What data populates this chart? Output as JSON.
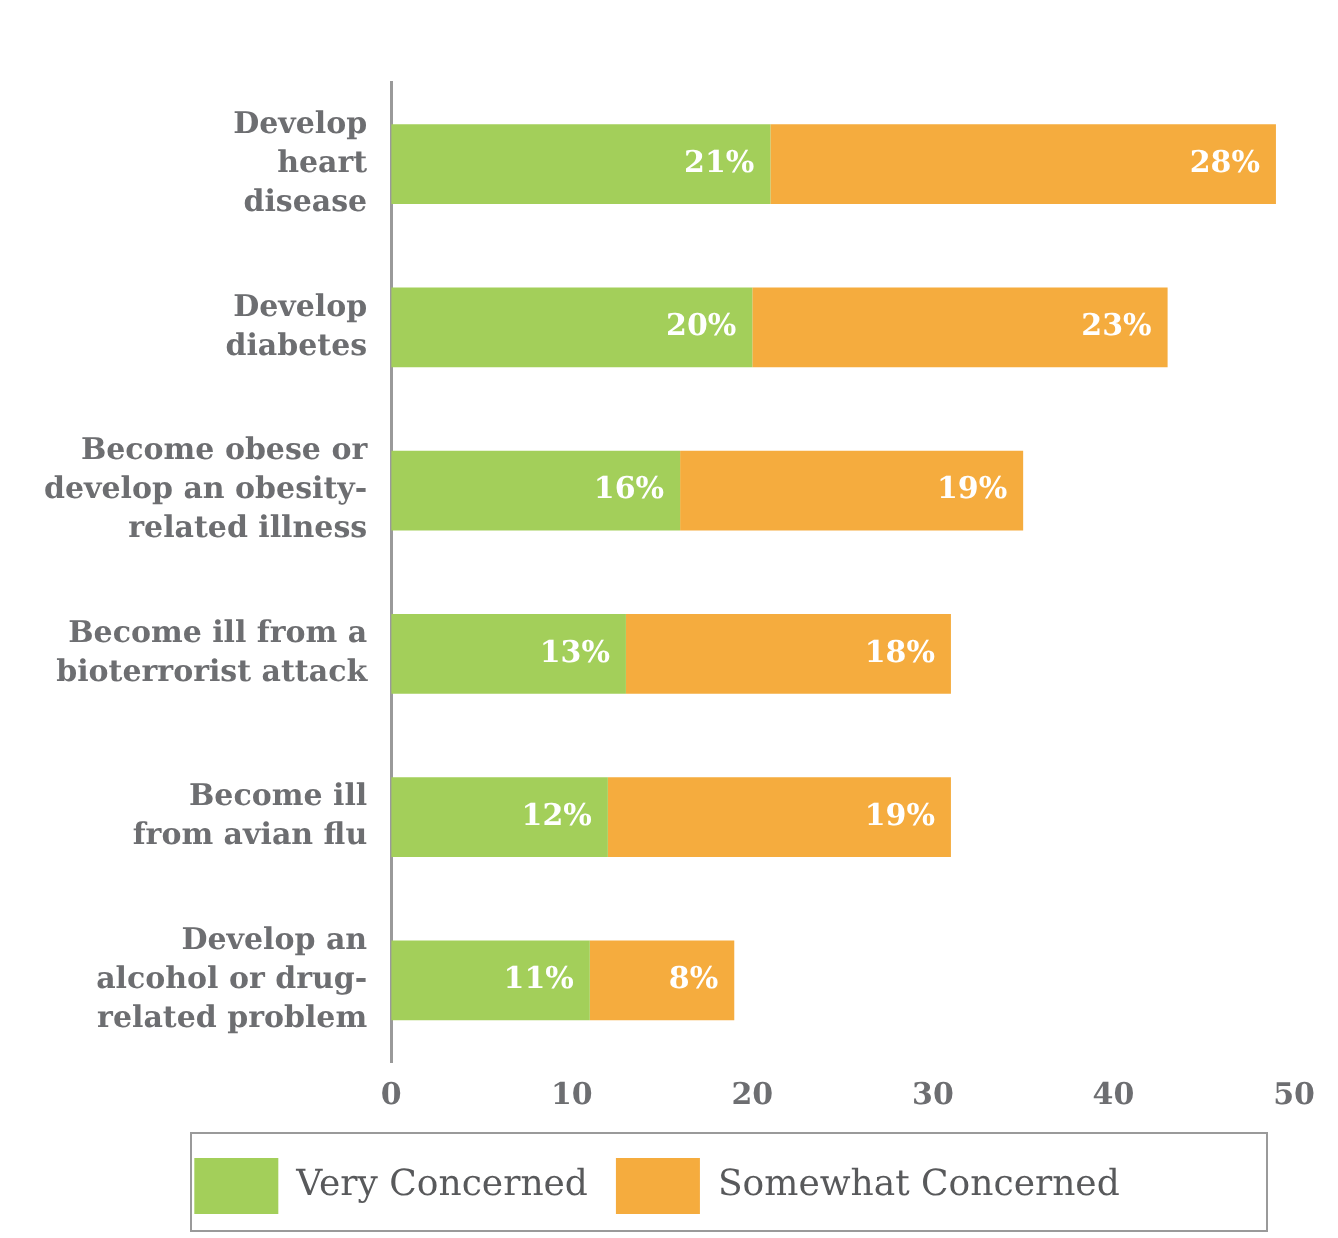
{
  "chart_data": {
    "type": "bar",
    "orientation": "horizontal",
    "stacked": true,
    "categories": [
      "Develop\nheart\ndisease",
      "Develop\ndiabetes",
      "Become obese or\ndevelop an obesity-\nrelated illness",
      "Become ill from a\nbioterrorist attack",
      "Become ill\nfrom avian flu",
      "Develop an\nalcohol or drug-\nrelated problem"
    ],
    "series": [
      {
        "name": "Very Concerned",
        "color": "#a3cf5a",
        "values": [
          21,
          20,
          16,
          13,
          12,
          11
        ],
        "value_labels": [
          "21%",
          "20%",
          "16%",
          "13%",
          "12%",
          "11%"
        ]
      },
      {
        "name": "Somewhat Concerned",
        "color": "#f5ac3e",
        "values": [
          28,
          23,
          19,
          18,
          19,
          8
        ],
        "value_labels": [
          "28%",
          "23%",
          "19%",
          "18%",
          "19%",
          "8%"
        ]
      }
    ],
    "xlim": [
      0,
      50
    ],
    "xticks": [
      0,
      10,
      20,
      30,
      40,
      50
    ],
    "grid": false,
    "legend": "bottom"
  }
}
